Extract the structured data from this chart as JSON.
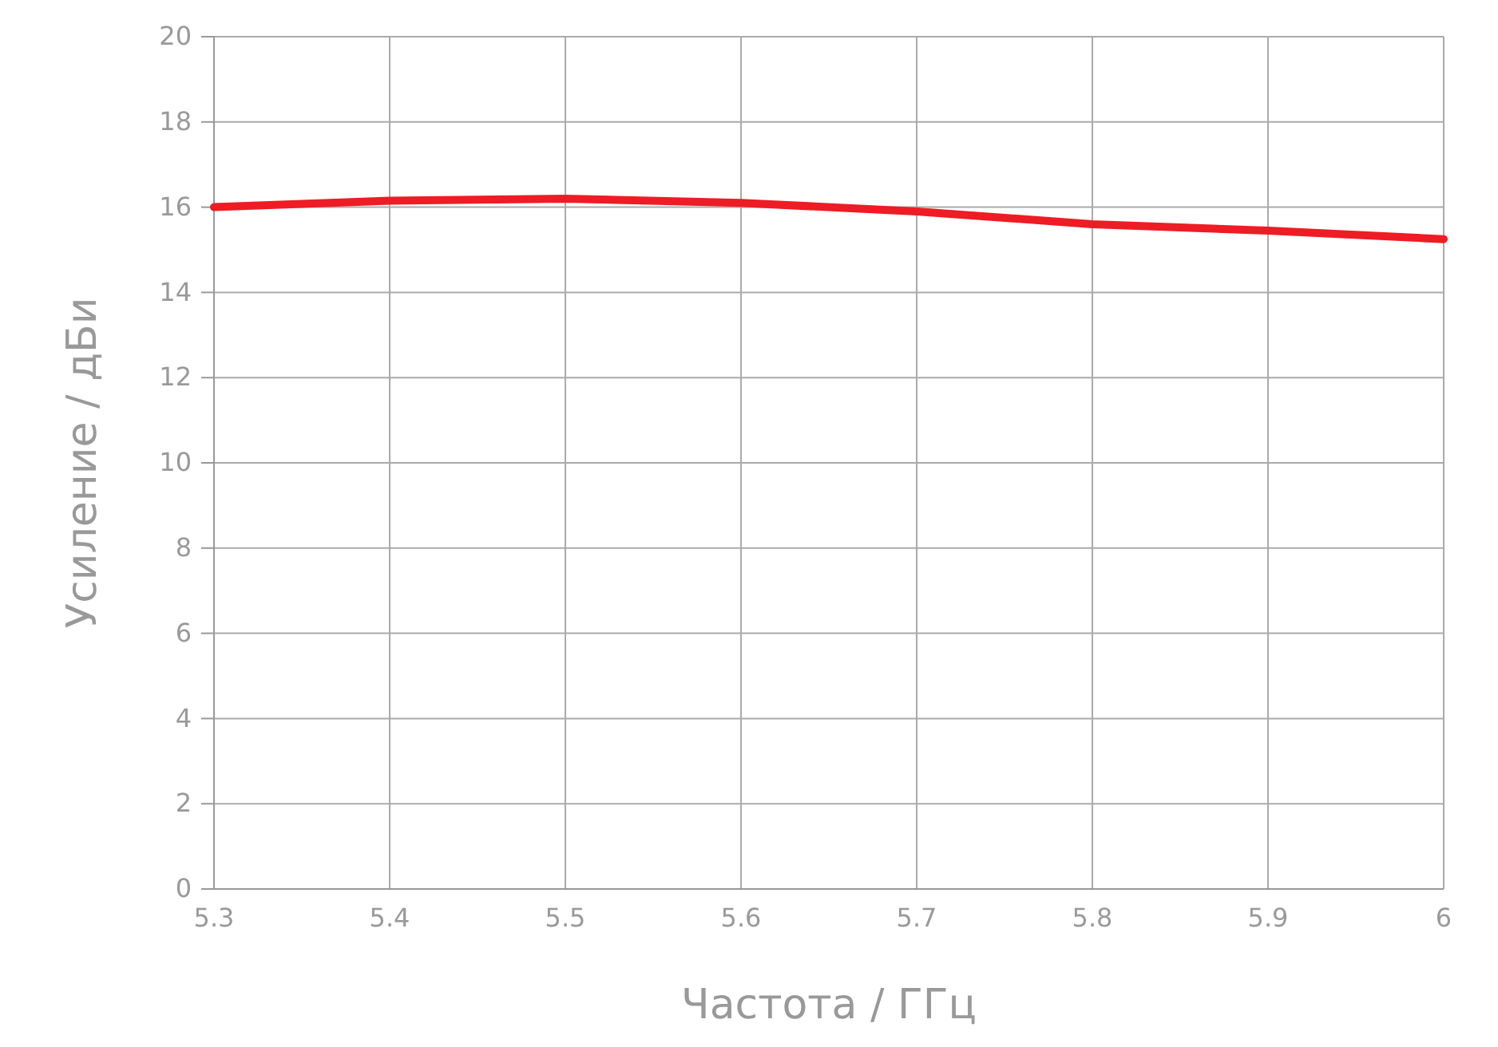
{
  "chart_data": {
    "type": "line",
    "xlabel": "Частота / ГГц",
    "ylabel": "Усиление / дБи",
    "x": [
      5.3,
      5.4,
      5.5,
      5.6,
      5.7,
      5.8,
      5.9,
      6.0
    ],
    "series": [
      {
        "color": "#ee1c25",
        "values": [
          16.0,
          16.15,
          16.2,
          16.1,
          15.9,
          15.6,
          15.45,
          15.25
        ]
      }
    ],
    "xlim": [
      5.3,
      6.0
    ],
    "xticks": [
      5.3,
      5.4,
      5.5,
      5.6,
      5.7,
      5.8,
      5.9,
      {
        "value": 6.0,
        "label": "6"
      }
    ],
    "ylim": [
      0,
      20
    ],
    "yticks": [
      0,
      2,
      4,
      6,
      8,
      10,
      12,
      14,
      16,
      18,
      20
    ],
    "grid": true,
    "marker": "none",
    "line_style": "solid"
  }
}
